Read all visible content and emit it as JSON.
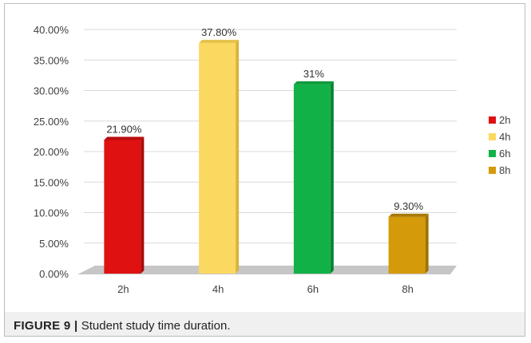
{
  "chart_data": {
    "type": "bar",
    "categories": [
      "2h",
      "4h",
      "6h",
      "8h"
    ],
    "values": [
      21.9,
      37.8,
      31,
      9.3
    ],
    "data_labels": [
      "21.90%",
      "37.80%",
      "31%",
      "9.30%"
    ],
    "colors": [
      "#e01111",
      "#fbd860",
      "#12b148",
      "#d49a09"
    ],
    "side_colors": [
      "#a80b0b",
      "#d8b33e",
      "#0b8434",
      "#9f7205"
    ],
    "top_colors": [
      "#b80d0d",
      "#e6c24a",
      "#0e9a3d",
      "#a87a07"
    ],
    "ylim": [
      0,
      40
    ],
    "yticks": [
      0,
      5,
      10,
      15,
      20,
      25,
      30,
      35,
      40
    ],
    "ytick_labels": [
      "0.00%",
      "5.00%",
      "10.00%",
      "15.00%",
      "20.00%",
      "25.00%",
      "30.00%",
      "35.00%",
      "40.00%"
    ],
    "legend": {
      "position": "right",
      "entries": [
        "2h",
        "4h",
        "6h",
        "8h"
      ]
    },
    "grid": true,
    "title": "",
    "xlabel": "",
    "ylabel": ""
  },
  "caption": {
    "label": "FIGURE 9 |",
    "text": " Student study time duration."
  }
}
